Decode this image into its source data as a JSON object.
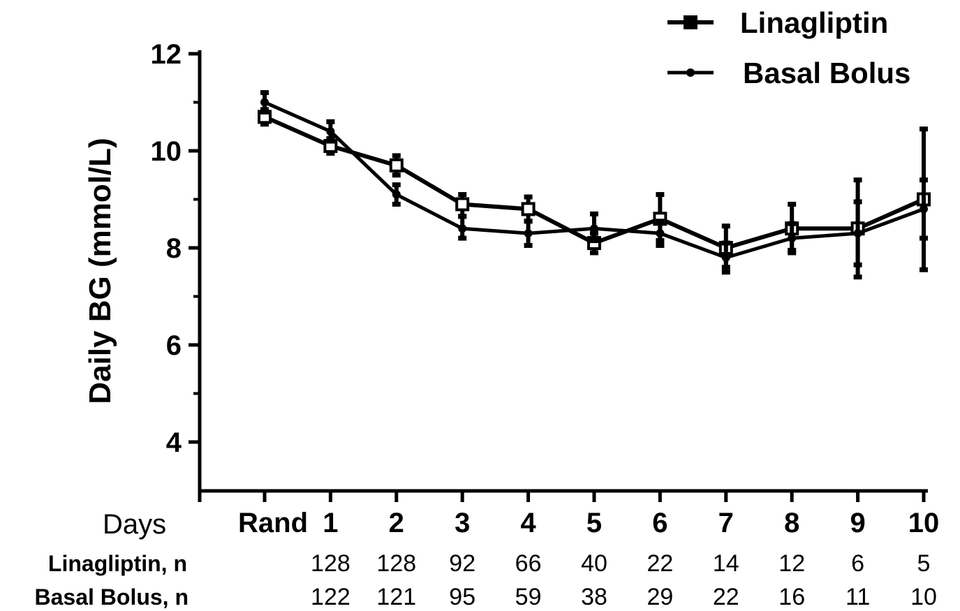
{
  "chart_data": {
    "type": "line",
    "title": "",
    "xlabel": "Days",
    "ylabel": "Daily BG (mmol/L)",
    "ylim": [
      3,
      12
    ],
    "yticks": [
      4,
      6,
      8,
      10,
      12
    ],
    "categories": [
      "Rand",
      "1",
      "2",
      "3",
      "4",
      "5",
      "6",
      "7",
      "8",
      "9",
      "10"
    ],
    "grid": false,
    "legend_position": "top-right",
    "series": [
      {
        "name": "Linagliptin",
        "marker": "square",
        "values": [
          10.7,
          10.1,
          9.7,
          8.9,
          8.8,
          8.1,
          8.6,
          8.0,
          8.4,
          8.4,
          9.0
        ],
        "error_low": [
          10.55,
          9.95,
          9.5,
          8.65,
          8.55,
          7.9,
          8.15,
          7.6,
          7.95,
          7.4,
          7.55
        ],
        "error_high": [
          10.85,
          10.25,
          9.9,
          9.1,
          9.05,
          8.3,
          9.1,
          8.45,
          8.9,
          9.4,
          10.45
        ]
      },
      {
        "name": "Basal Bolus",
        "marker": "circle",
        "values": [
          11.0,
          10.4,
          9.1,
          8.4,
          8.3,
          8.4,
          8.3,
          7.8,
          8.2,
          8.3,
          8.8
        ],
        "error_low": [
          10.8,
          10.2,
          8.9,
          8.2,
          8.05,
          8.15,
          8.05,
          7.5,
          7.9,
          7.65,
          8.2
        ],
        "error_high": [
          11.2,
          10.6,
          9.3,
          8.65,
          8.55,
          8.7,
          8.55,
          8.1,
          8.5,
          8.95,
          9.4
        ]
      }
    ]
  },
  "n_table": {
    "rows": [
      {
        "label": "Linagliptin, n",
        "values": [
          "",
          "128",
          "128",
          "92",
          "66",
          "40",
          "22",
          "14",
          "12",
          "6",
          "5"
        ]
      },
      {
        "label": "Basal Bolus, n",
        "values": [
          "",
          "122",
          "121",
          "95",
          "59",
          "38",
          "29",
          "22",
          "16",
          "11",
          "10"
        ]
      }
    ]
  }
}
